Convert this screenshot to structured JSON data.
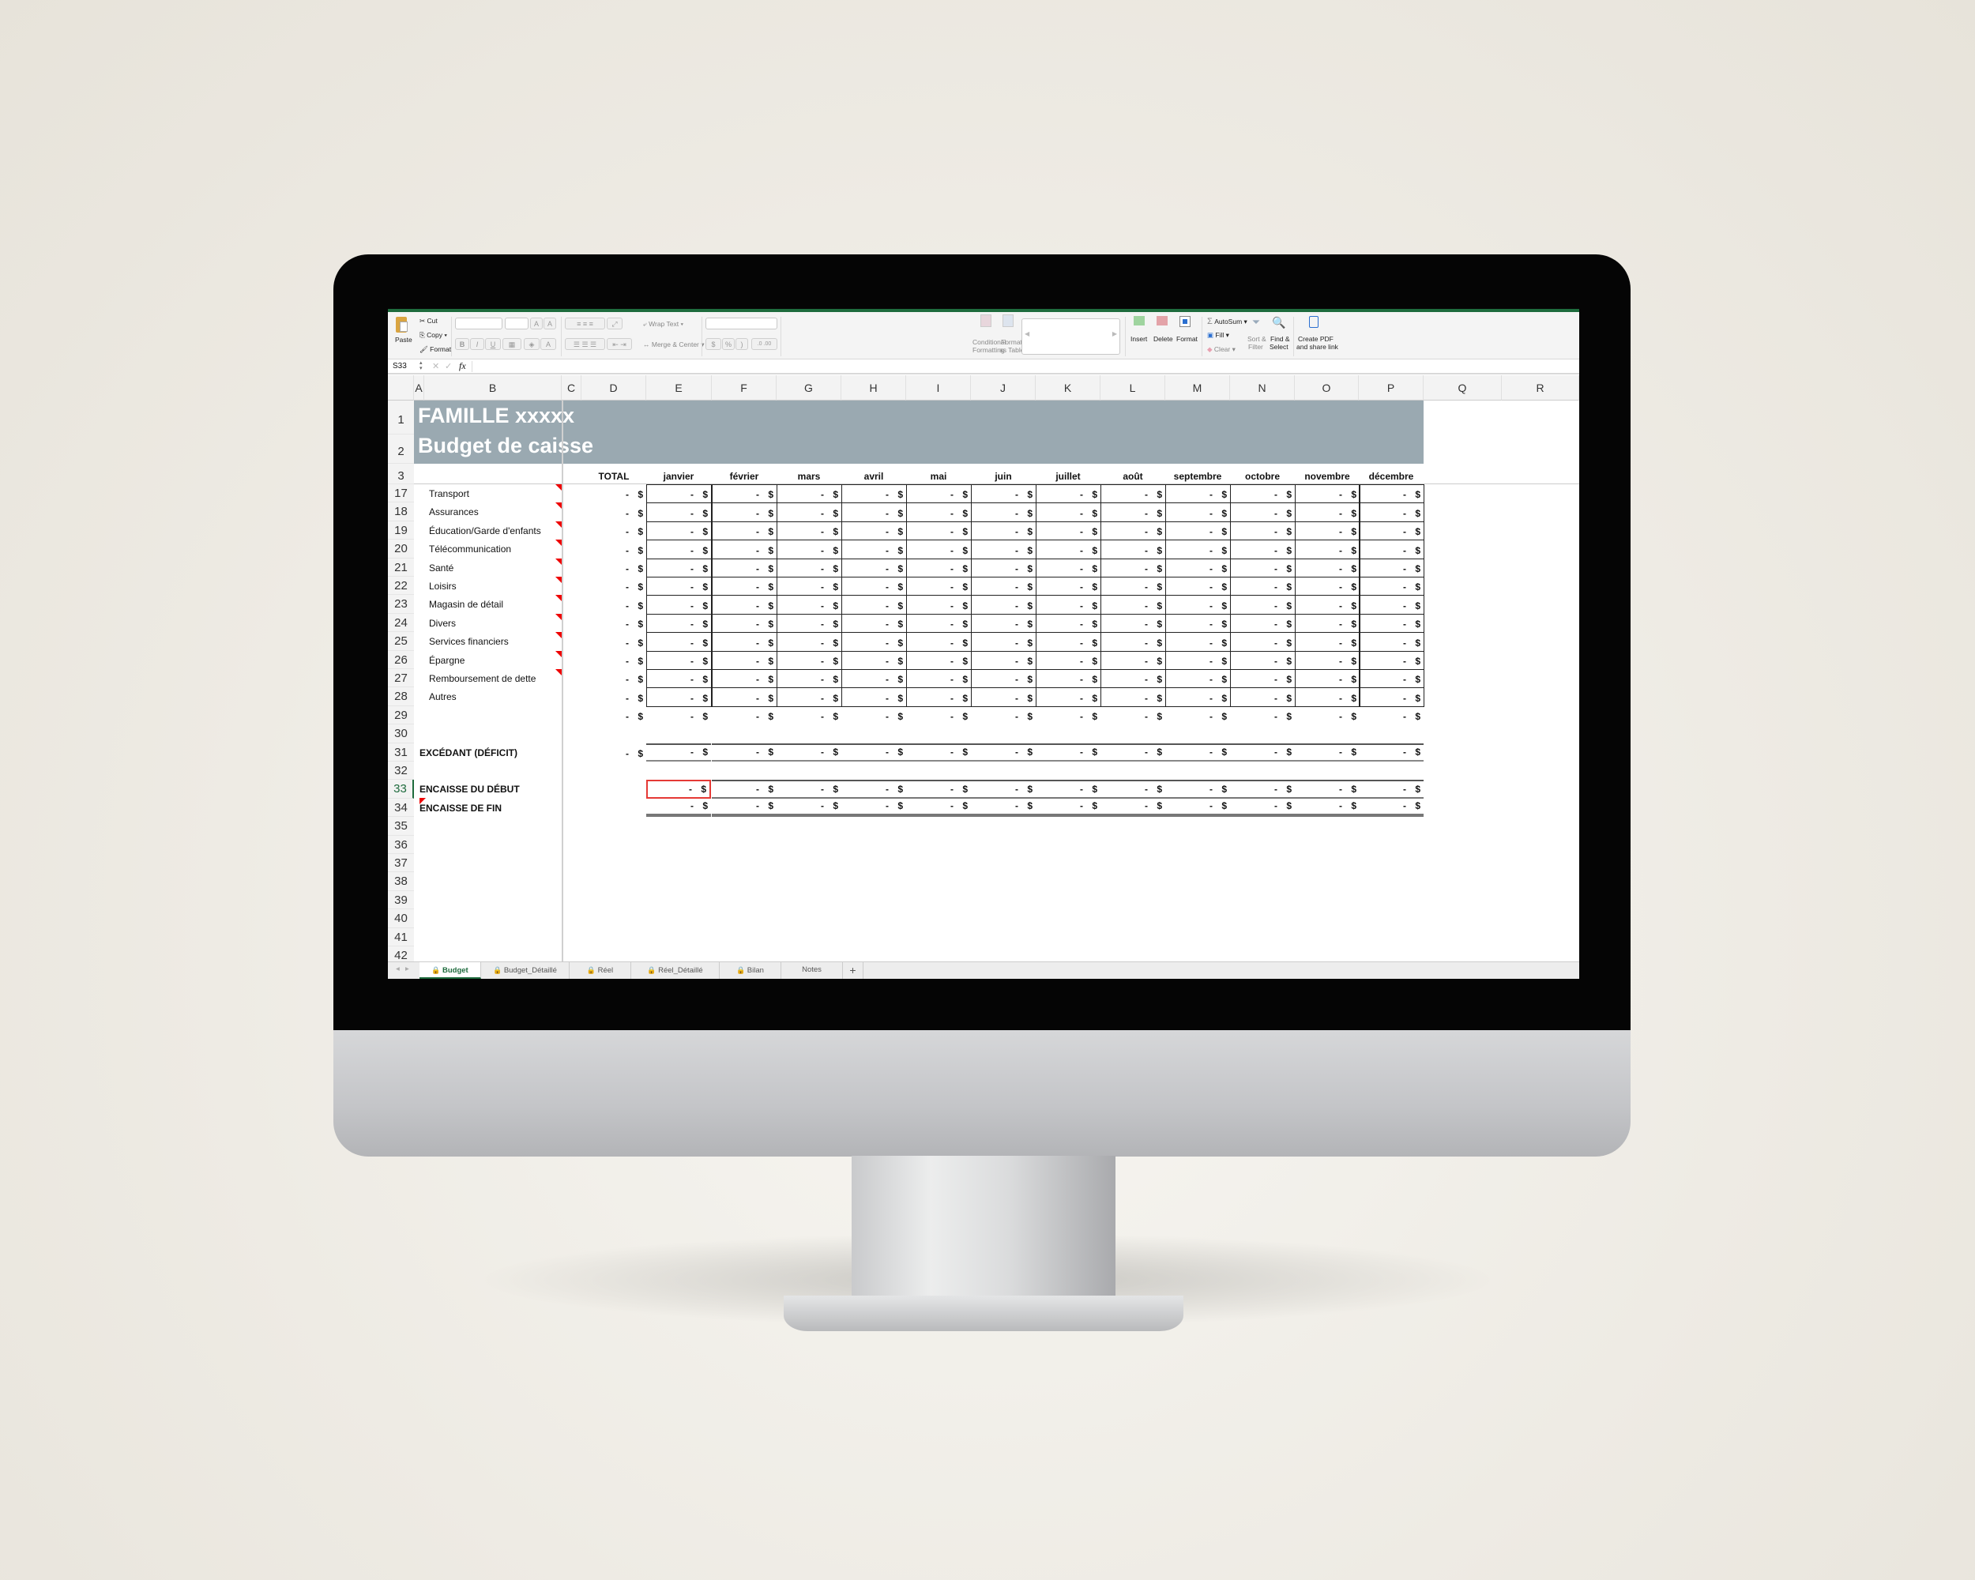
{
  "colors": {
    "accent": "#1e6b3d",
    "header_band": "#9aa9b1",
    "selection": "#e53935",
    "comment": "#e00000"
  },
  "ribbon": {
    "paste": "Paste",
    "cut": "Cut",
    "copy": "Copy",
    "format_painter": "Format",
    "bold": "B",
    "italic": "I",
    "underline": "U",
    "grow_font": "A",
    "shrink_font": "A",
    "wrap_text": "Wrap Text",
    "merge_center": "Merge & Center",
    "currency": "$",
    "percent": "%",
    "comma": ")",
    "cond_format_1": "Conditional",
    "cond_format_2": "Formatting",
    "fmt_table_1": "Format",
    "fmt_table_2": "as Table",
    "insert": "Insert",
    "delete": "Delete",
    "format": "Format",
    "autosum": "AutoSum",
    "fill": "Fill",
    "clear": "Clear",
    "sort_1": "Sort &",
    "sort_2": "Filter",
    "find_1": "Find &",
    "find_2": "Select",
    "pdf_1": "Create PDF",
    "pdf_2": "and share link"
  },
  "formula_bar": {
    "name_box": "S33",
    "cancel": "✕",
    "enter": "✓",
    "fx": "fx",
    "value": ""
  },
  "columns": [
    "A",
    "B",
    "C",
    "D",
    "E",
    "F",
    "G",
    "H",
    "I",
    "J",
    "K",
    "L",
    "M",
    "N",
    "O",
    "P",
    "Q",
    "R"
  ],
  "sheet": {
    "title": "FAMILLE xxxxx",
    "subtitle": "Budget de caisse",
    "total_header": "TOTAL",
    "months": [
      "janvier",
      "février",
      "mars",
      "avril",
      "mai",
      "juin",
      "juillet",
      "août",
      "septembre",
      "octobre",
      "novembre",
      "décembre"
    ],
    "currency": "$",
    "rows": [
      {
        "num": "17",
        "label": "Transport",
        "note": true,
        "total": "-",
        "months": [
          "-",
          "-",
          "-",
          "-",
          "-",
          "-",
          "-",
          "-",
          "-",
          "-",
          "-",
          "-"
        ]
      },
      {
        "num": "18",
        "label": "Assurances",
        "note": true,
        "total": "-",
        "months": [
          "-",
          "-",
          "-",
          "-",
          "-",
          "-",
          "-",
          "-",
          "-",
          "-",
          "-",
          "-"
        ]
      },
      {
        "num": "19",
        "label": "Éducation/Garde d'enfants",
        "note": true,
        "total": "-",
        "months": [
          "-",
          "-",
          "-",
          "-",
          "-",
          "-",
          "-",
          "-",
          "-",
          "-",
          "-",
          "-"
        ]
      },
      {
        "num": "20",
        "label": "Télécommunication",
        "note": true,
        "total": "-",
        "months": [
          "-",
          "-",
          "-",
          "-",
          "-",
          "-",
          "-",
          "-",
          "-",
          "-",
          "-",
          "-"
        ]
      },
      {
        "num": "21",
        "label": "Santé",
        "note": true,
        "total": "-",
        "months": [
          "-",
          "-",
          "-",
          "-",
          "-",
          "-",
          "-",
          "-",
          "-",
          "-",
          "-",
          "-"
        ]
      },
      {
        "num": "22",
        "label": "Loisirs",
        "note": true,
        "total": "-",
        "months": [
          "-",
          "-",
          "-",
          "-",
          "-",
          "-",
          "-",
          "-",
          "-",
          "-",
          "-",
          "-"
        ]
      },
      {
        "num": "23",
        "label": "Magasin de détail",
        "note": true,
        "total": "-",
        "months": [
          "-",
          "-",
          "-",
          "-",
          "-",
          "-",
          "-",
          "-",
          "-",
          "-",
          "-",
          "-"
        ]
      },
      {
        "num": "24",
        "label": "Divers",
        "note": true,
        "total": "-",
        "months": [
          "-",
          "-",
          "-",
          "-",
          "-",
          "-",
          "-",
          "-",
          "-",
          "-",
          "-",
          "-"
        ]
      },
      {
        "num": "25",
        "label": "Services financiers",
        "note": true,
        "total": "-",
        "months": [
          "-",
          "-",
          "-",
          "-",
          "-",
          "-",
          "-",
          "-",
          "-",
          "-",
          "-",
          "-"
        ]
      },
      {
        "num": "26",
        "label": "Épargne",
        "note": true,
        "total": "-",
        "months": [
          "-",
          "-",
          "-",
          "-",
          "-",
          "-",
          "-",
          "-",
          "-",
          "-",
          "-",
          "-"
        ]
      },
      {
        "num": "27",
        "label": "Remboursement de dette",
        "note": true,
        "total": "-",
        "months": [
          "-",
          "-",
          "-",
          "-",
          "-",
          "-",
          "-",
          "-",
          "-",
          "-",
          "-",
          "-"
        ]
      },
      {
        "num": "28",
        "label": "Autres",
        "note": false,
        "total": "-",
        "months": [
          "-",
          "-",
          "-",
          "-",
          "-",
          "-",
          "-",
          "-",
          "-",
          "-",
          "-",
          "-"
        ]
      },
      {
        "num": "29",
        "label": "",
        "total": "-",
        "style": "sum",
        "months": [
          "-",
          "-",
          "-",
          "-",
          "-",
          "-",
          "-",
          "-",
          "-",
          "-",
          "-",
          "-"
        ]
      },
      {
        "num": "30"
      },
      {
        "num": "31",
        "label": "EXCÉDANT (DÉFICIT)",
        "bold": true,
        "total": "-",
        "style": "surplus",
        "months": [
          "-",
          "-",
          "-",
          "-",
          "-",
          "-",
          "-",
          "-",
          "-",
          "-",
          "-",
          "-"
        ]
      },
      {
        "num": "32"
      },
      {
        "num": "33",
        "label": "ENCAISSE DU DÉBUT",
        "bold": true,
        "style": "start",
        "selected": true,
        "months": [
          "-",
          "-",
          "-",
          "-",
          "-",
          "-",
          "-",
          "-",
          "-",
          "-",
          "-",
          "-"
        ]
      },
      {
        "num": "34",
        "label": "ENCAISSE DE FIN",
        "bold": true,
        "note_left": true,
        "style": "end",
        "months": [
          "-",
          "-",
          "-",
          "-",
          "-",
          "-",
          "-",
          "-",
          "-",
          "-",
          "-",
          "-"
        ]
      },
      {
        "num": "35"
      },
      {
        "num": "36"
      },
      {
        "num": "37"
      },
      {
        "num": "38"
      },
      {
        "num": "39"
      },
      {
        "num": "40"
      },
      {
        "num": "41"
      },
      {
        "num": "42"
      }
    ]
  },
  "tabs": [
    {
      "label": "Budget",
      "locked": true,
      "active": true
    },
    {
      "label": "Budget_Détaillé",
      "locked": true
    },
    {
      "label": "Réel",
      "locked": true
    },
    {
      "label": "Réel_Détaillé",
      "locked": true
    },
    {
      "label": "Bilan",
      "locked": true
    },
    {
      "label": "Notes",
      "locked": false
    }
  ],
  "add_sheet": "+"
}
